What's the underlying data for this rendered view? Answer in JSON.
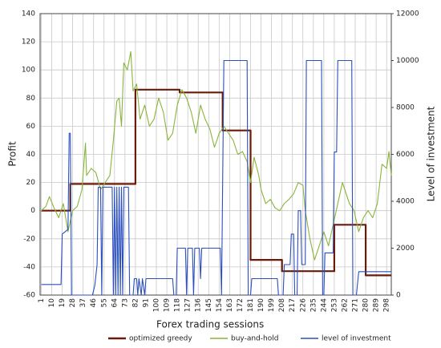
{
  "chart_data": {
    "type": "line",
    "xlabel": "Forex trading sessions",
    "ylabel": "Profit",
    "y2label": "Level of investment",
    "xlim": [
      0,
      302
    ],
    "xticks": [
      1,
      10,
      19,
      28,
      37,
      46,
      55,
      64,
      73,
      82,
      91,
      100,
      109,
      118,
      127,
      136,
      145,
      154,
      163,
      172,
      181,
      190,
      199,
      208,
      217,
      226,
      235,
      244,
      253,
      262,
      271,
      280,
      289,
      298
    ],
    "ylim": [
      -60,
      140
    ],
    "yticks": [
      -60,
      -40,
      -20,
      0,
      20,
      40,
      60,
      80,
      100,
      120,
      140
    ],
    "y2lim": [
      0,
      12000
    ],
    "y2ticks": [
      0,
      2000,
      4000,
      6000,
      8000,
      10000,
      12000
    ],
    "grid": true,
    "legend": "bottom",
    "series": [
      {
        "name": "optimized greedy",
        "color": "#6b1a0a",
        "x": [
          1,
          26,
          26,
          82,
          82,
          120,
          120,
          157,
          157,
          181,
          181,
          208,
          208,
          253,
          253,
          280,
          280,
          302
        ],
        "values": [
          0,
          0,
          19,
          19,
          86,
          86,
          84,
          84,
          57,
          57,
          -35,
          -35,
          -43,
          -43,
          -10,
          -10,
          -46,
          -46
        ]
      },
      {
        "name": "buy-and-hold",
        "color": "#8ab43c",
        "x": [
          1,
          5,
          8,
          12,
          16,
          20,
          24,
          28,
          32,
          36,
          39,
          40,
          44,
          48,
          52,
          56,
          60,
          63,
          66,
          68,
          70,
          72,
          75,
          78,
          80,
          83,
          86,
          90,
          94,
          98,
          102,
          106,
          110,
          114,
          118,
          122,
          126,
          130,
          134,
          138,
          142,
          146,
          150,
          154,
          158,
          162,
          166,
          170,
          174,
          178,
          181,
          184,
          188,
          190,
          194,
          198,
          202,
          206,
          210,
          214,
          218,
          222,
          226,
          228,
          232,
          236,
          240,
          244,
          248,
          252,
          256,
          260,
          262,
          266,
          270,
          274,
          278,
          282,
          286,
          290,
          294,
          298,
          300,
          302
        ],
        "values": [
          0,
          3,
          10,
          2,
          -5,
          5,
          -15,
          0,
          3,
          15,
          48,
          25,
          30,
          27,
          15,
          20,
          25,
          50,
          78,
          80,
          60,
          105,
          100,
          113,
          85,
          90,
          65,
          75,
          60,
          65,
          80,
          70,
          50,
          55,
          75,
          86,
          80,
          70,
          55,
          75,
          65,
          58,
          45,
          55,
          60,
          55,
          50,
          40,
          42,
          35,
          20,
          38,
          25,
          15,
          5,
          8,
          2,
          0,
          5,
          8,
          12,
          20,
          18,
          0,
          -20,
          -35,
          -25,
          -15,
          -25,
          -10,
          5,
          20,
          15,
          5,
          0,
          -15,
          -5,
          0,
          -5,
          5,
          33,
          30,
          42,
          25
        ]
      },
      {
        "name": "level of investment",
        "color": "#2b4fbd",
        "axis": "y2",
        "x": [
          1,
          18,
          19,
          24,
          25,
          26,
          27,
          45,
          47,
          49,
          50,
          52,
          53,
          54,
          62,
          63,
          64,
          65,
          66,
          67,
          68,
          69,
          70,
          71,
          72,
          76,
          77,
          80,
          81,
          83,
          84,
          85,
          87,
          88,
          90,
          91,
          114,
          115,
          117,
          118,
          125,
          126,
          127,
          131,
          132,
          133,
          137,
          138,
          139,
          155,
          156,
          158,
          178,
          179,
          181,
          182,
          204,
          205,
          209,
          210,
          215,
          216,
          218,
          219,
          221,
          222,
          224,
          225,
          228,
          229,
          242,
          243,
          244,
          245,
          252,
          253,
          255,
          256,
          268,
          269,
          272,
          274,
          302
        ],
        "values": [
          450,
          450,
          2600,
          2800,
          6900,
          6900,
          0,
          0,
          400,
          1300,
          4600,
          4600,
          0,
          4600,
          4600,
          0,
          4600,
          0,
          4600,
          0,
          4600,
          0,
          4600,
          0,
          4600,
          4600,
          0,
          0,
          700,
          700,
          0,
          700,
          0,
          700,
          0,
          700,
          700,
          0,
          0,
          2000,
          2000,
          0,
          2000,
          2000,
          0,
          2000,
          2000,
          700,
          2000,
          2000,
          0,
          10000,
          10000,
          0,
          0,
          700,
          700,
          0,
          0,
          1300,
          1300,
          2600,
          2600,
          0,
          0,
          3600,
          3600,
          1300,
          1300,
          10000,
          10000,
          0,
          0,
          1800,
          1800,
          6100,
          6100,
          10000,
          10000,
          0,
          0,
          1000,
          1000
        ]
      }
    ]
  }
}
